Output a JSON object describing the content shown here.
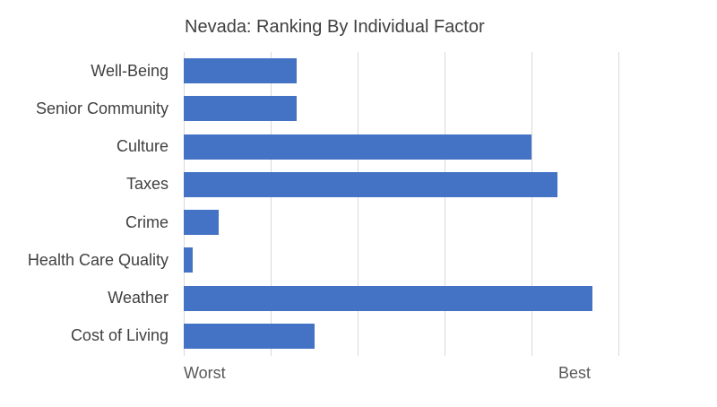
{
  "colors": {
    "bar": "#4472C4",
    "gridline": "#D9D9D9",
    "title_text": "#404040",
    "category_text": "#404040",
    "axis_text": "#595959",
    "background": "#FFFFFF"
  },
  "chart_data": {
    "type": "bar",
    "orientation": "horizontal",
    "title": "Nevada: Ranking By Individual Factor",
    "categories": [
      "Well-Being",
      "Senior Community",
      "Culture",
      "Taxes",
      "Crime",
      "Health Care Quality",
      "Weather",
      "Cost of Living"
    ],
    "values": [
      13,
      13,
      40,
      43,
      4,
      1,
      47,
      15
    ],
    "xlabel_left": "Worst",
    "xlabel_right": "Best",
    "xlim": [
      0,
      50
    ],
    "gridline_interval": 10,
    "grid": true,
    "legend": false
  }
}
